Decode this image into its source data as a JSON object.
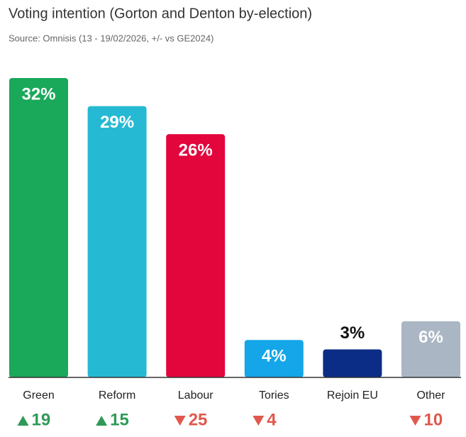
{
  "chart_data": {
    "type": "bar",
    "title": "Voting intention (Gorton and Denton by-election)",
    "subtitle": "Source: Omnisis (13 - 19/02/2026, +/- vs GE2024)",
    "categories": [
      "Green",
      "Reform",
      "Labour",
      "Tories",
      "Rejoin EU",
      "Other"
    ],
    "values": [
      32,
      29,
      26,
      4,
      3,
      6
    ],
    "value_labels": [
      "32%",
      "29%",
      "26%",
      "4%",
      "3%",
      "6%"
    ],
    "colors": [
      "#1aa85a",
      "#25b9d3",
      "#e3063c",
      "#14a6e9",
      "#0c2d86",
      "#aab6c3"
    ],
    "changes": [
      19,
      15,
      -25,
      -4,
      null,
      -10
    ],
    "change_labels": [
      "19",
      "15",
      "25",
      "4",
      null,
      "10"
    ]
  }
}
